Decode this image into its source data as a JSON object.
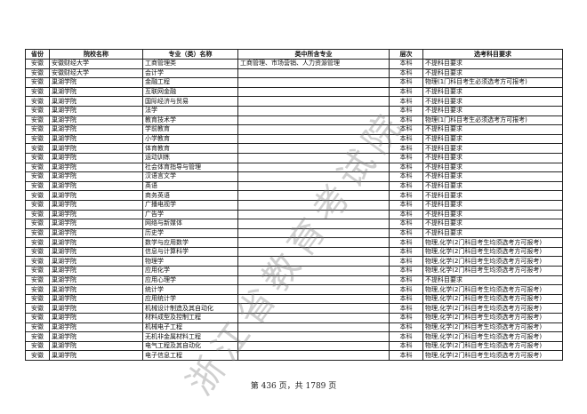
{
  "headers": [
    "省份",
    "院校名称",
    "专业（类）名称",
    "类中所含专业",
    "层次",
    "选考科目要求"
  ],
  "rows": [
    [
      "安徽",
      "安徽财经大学",
      "工商管理类",
      "工商管理、市场营销、人力资源管理",
      "本科",
      "不提科目要求"
    ],
    [
      "安徽",
      "安徽财经大学",
      "会计学",
      "",
      "本科",
      "不提科目要求"
    ],
    [
      "安徽",
      "巢湖学院",
      "金融工程",
      "",
      "本科",
      "物理(1门科目考生必须选考方可报考)"
    ],
    [
      "安徽",
      "巢湖学院",
      "互联网金融",
      "",
      "本科",
      "不提科目要求"
    ],
    [
      "安徽",
      "巢湖学院",
      "国际经济与贸易",
      "",
      "本科",
      "不提科目要求"
    ],
    [
      "安徽",
      "巢湖学院",
      "法学",
      "",
      "本科",
      "不提科目要求"
    ],
    [
      "安徽",
      "巢湖学院",
      "教育技术学",
      "",
      "本科",
      "物理(1门科目考生必须选考方可报考)"
    ],
    [
      "安徽",
      "巢湖学院",
      "学前教育",
      "",
      "本科",
      "不提科目要求"
    ],
    [
      "安徽",
      "巢湖学院",
      "小学教育",
      "",
      "本科",
      "不提科目要求"
    ],
    [
      "安徽",
      "巢湖学院",
      "体育教育",
      "",
      "本科",
      "不提科目要求"
    ],
    [
      "安徽",
      "巢湖学院",
      "运动训练",
      "",
      "本科",
      "不提科目要求"
    ],
    [
      "安徽",
      "巢湖学院",
      "社会体育指导与管理",
      "",
      "本科",
      "不提科目要求"
    ],
    [
      "安徽",
      "巢湖学院",
      "汉语言文学",
      "",
      "本科",
      "不提科目要求"
    ],
    [
      "安徽",
      "巢湖学院",
      "英语",
      "",
      "本科",
      "不提科目要求"
    ],
    [
      "安徽",
      "巢湖学院",
      "商务英语",
      "",
      "本科",
      "不提科目要求"
    ],
    [
      "安徽",
      "巢湖学院",
      "广播电视学",
      "",
      "本科",
      "不提科目要求"
    ],
    [
      "安徽",
      "巢湖学院",
      "广告学",
      "",
      "本科",
      "不提科目要求"
    ],
    [
      "安徽",
      "巢湖学院",
      "网络与新媒体",
      "",
      "本科",
      "不提科目要求"
    ],
    [
      "安徽",
      "巢湖学院",
      "历史学",
      "",
      "本科",
      "不提科目要求"
    ],
    [
      "安徽",
      "巢湖学院",
      "数学与应用数学",
      "",
      "本科",
      "物理,化学(2门科目考生均须选考方可报考)"
    ],
    [
      "安徽",
      "巢湖学院",
      "信息与计算科学",
      "",
      "本科",
      "物理,化学(2门科目考生均须选考方可报考)"
    ],
    [
      "安徽",
      "巢湖学院",
      "物理学",
      "",
      "本科",
      "物理,化学(2门科目考生均须选考方可报考)"
    ],
    [
      "安徽",
      "巢湖学院",
      "应用化学",
      "",
      "本科",
      "物理,化学(2门科目考生均须选考方可报考)"
    ],
    [
      "安徽",
      "巢湖学院",
      "应用心理学",
      "",
      "本科",
      "不提科目要求"
    ],
    [
      "安徽",
      "巢湖学院",
      "统计学",
      "",
      "本科",
      "物理,化学(2门科目考生均须选考方可报考)"
    ],
    [
      "安徽",
      "巢湖学院",
      "应用统计学",
      "",
      "本科",
      "物理,化学(2门科目考生均须选考方可报考)"
    ],
    [
      "安徽",
      "巢湖学院",
      "机械设计制造及其自动化",
      "",
      "本科",
      "物理,化学(2门科目考生均须选考方可报考)"
    ],
    [
      "安徽",
      "巢湖学院",
      "材料成型及控制工程",
      "",
      "本科",
      "物理,化学(2门科目考生均须选考方可报考)"
    ],
    [
      "安徽",
      "巢湖学院",
      "机械电子工程",
      "",
      "本科",
      "物理,化学(2门科目考生均须选考方可报考)"
    ],
    [
      "安徽",
      "巢湖学院",
      "无机非金属材料工程",
      "",
      "本科",
      "物理,化学(2门科目考生均须选考方可报考)"
    ],
    [
      "安徽",
      "巢湖学院",
      "电气工程及其自动化",
      "",
      "本科",
      "物理,化学(2门科目考生均须选考方可报考)"
    ],
    [
      "安徽",
      "巢湖学院",
      "电子信息工程",
      "",
      "本科",
      "物理,化学(2门科目考生均须选考方可报考)"
    ]
  ],
  "footer": "第 436 页，共 1789 页",
  "watermark": "浙江省教育考试院"
}
